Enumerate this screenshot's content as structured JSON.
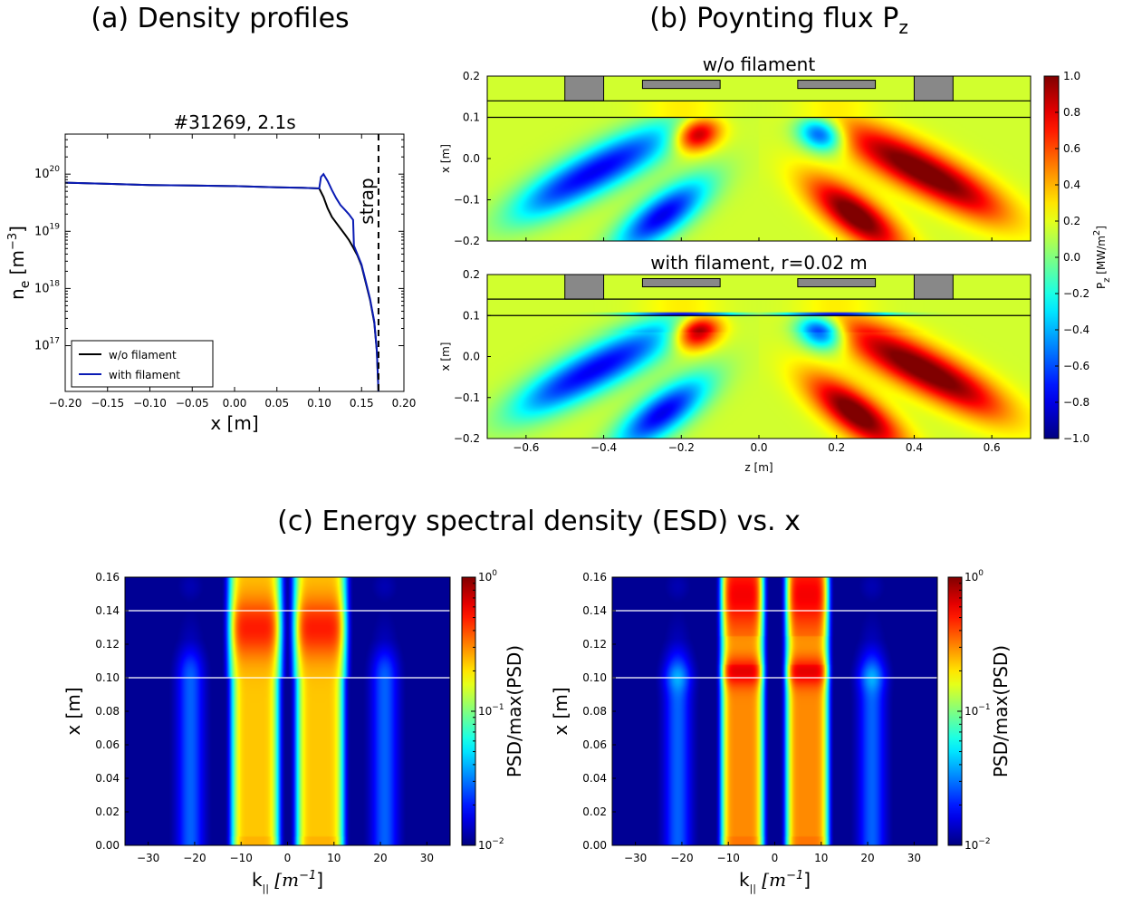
{
  "section_titles": {
    "a": "(a) Density profiles",
    "b_main": "(b) Poynting flux P",
    "b_sub": "z",
    "c": "(c) Energy spectral density (ESD) vs. x"
  },
  "colors": {
    "jet": [
      "#00007f",
      "#0000ff",
      "#007fff",
      "#00ffff",
      "#7fff7f",
      "#ffff00",
      "#ff7f00",
      "#ff0000",
      "#7f0000"
    ],
    "bg_field": "#6fd36c",
    "deep_blue": "#00008a",
    "block": "#888888",
    "w_o_line": "#000000",
    "with_line": "#0a1bb4"
  },
  "chart_data": [
    {
      "id": "density",
      "type": "line",
      "title": "#31269, 2.1s",
      "xlabel": "x [m]",
      "ylabel_main": "n",
      "ylabel_sub": "e",
      "ylabel_unit": " [m",
      "ylabel_sup": "−3",
      "ylabel_end": "]",
      "xlim": [
        -0.2,
        0.2
      ],
      "ylim_log10": [
        16.2,
        20.7
      ],
      "yscale": "log",
      "x_ticks": [
        -0.2,
        -0.15,
        -0.1,
        -0.05,
        0.0,
        0.05,
        0.1,
        0.15,
        0.2
      ],
      "x_tick_labels": [
        "−0.20",
        "−0.15",
        "−0.10",
        "−0.05",
        "0.00",
        "0.05",
        "0.10",
        "0.15",
        "0.20"
      ],
      "y_ticks_log10": [
        17,
        18,
        19,
        20
      ],
      "y_tick_base": "10",
      "y_tick_exps": [
        "17",
        "18",
        "19",
        "20"
      ],
      "strap_x": 0.17,
      "strap_label": "strap",
      "legend_position": "bottom-left",
      "series": [
        {
          "name": "w/o filament",
          "x": [
            -0.2,
            -0.15,
            -0.1,
            -0.05,
            0.0,
            0.05,
            0.08,
            0.1,
            0.105,
            0.11,
            0.115,
            0.12,
            0.125,
            0.13,
            0.135,
            0.14,
            0.145,
            0.15,
            0.155,
            0.16,
            0.165,
            0.168,
            0.17
          ],
          "log10_y": [
            19.85,
            19.83,
            19.81,
            19.8,
            19.79,
            19.77,
            19.76,
            19.75,
            19.6,
            19.4,
            19.25,
            19.15,
            19.05,
            18.95,
            18.85,
            18.72,
            18.58,
            18.4,
            18.1,
            17.8,
            17.4,
            16.9,
            16.2
          ]
        },
        {
          "name": "with filament",
          "x": [
            -0.2,
            -0.15,
            -0.1,
            -0.05,
            0.0,
            0.05,
            0.08,
            0.1,
            0.102,
            0.105,
            0.11,
            0.115,
            0.12,
            0.125,
            0.13,
            0.135,
            0.14,
            0.141,
            0.145,
            0.15,
            0.155,
            0.16,
            0.165,
            0.168,
            0.17
          ],
          "log10_y": [
            19.85,
            19.83,
            19.81,
            19.8,
            19.79,
            19.77,
            19.76,
            19.75,
            19.95,
            20.0,
            19.88,
            19.72,
            19.58,
            19.46,
            19.38,
            19.3,
            19.2,
            18.75,
            18.6,
            18.42,
            18.12,
            17.82,
            17.42,
            16.92,
            16.2
          ]
        }
      ]
    },
    {
      "id": "poynting",
      "type": "heatmap",
      "panels": [
        {
          "title": "w/o filament",
          "filament": false
        },
        {
          "title": "with filament, r=0.02 m",
          "filament": true
        }
      ],
      "xlabel": "z [m]",
      "ylabel": "x [m]",
      "xlim": [
        -0.7,
        0.7
      ],
      "ylim": [
        -0.2,
        0.2
      ],
      "x_ticks": [
        -0.6,
        -0.4,
        -0.2,
        0.0,
        0.2,
        0.4,
        0.6
      ],
      "x_tick_labels": [
        "−0.6",
        "−0.4",
        "−0.2",
        "0.0",
        "0.2",
        "0.4",
        "0.6"
      ],
      "y_ticks": [
        -0.2,
        -0.1,
        0.0,
        0.1,
        0.2
      ],
      "y_tick_labels": [
        "−0.2",
        "−0.1",
        "0.0",
        "0.1",
        "0.2"
      ],
      "lines_x": [
        0.1,
        0.14
      ],
      "limiters_z": [
        [
          -0.5,
          -0.4
        ],
        [
          0.4,
          0.5
        ]
      ],
      "limiters_x": [
        0.14,
        0.2
      ],
      "straps_z": [
        [
          -0.3,
          -0.1
        ],
        [
          0.1,
          0.3
        ]
      ],
      "straps_x": [
        0.17,
        0.19
      ],
      "colorbar": {
        "range": [
          -1.0,
          1.0
        ],
        "ticks": [
          -1.0,
          -0.8,
          -0.6,
          -0.4,
          -0.2,
          0.0,
          0.2,
          0.4,
          0.6,
          0.8,
          1.0
        ],
        "tick_labels": [
          "−1.0",
          "−0.8",
          "−0.6",
          "−0.4",
          "−0.2",
          "0.0",
          "0.2",
          "0.4",
          "0.6",
          "0.8",
          "1.0"
        ],
        "label_main": "P",
        "label_sub": "z",
        "label_unit": " [MW/m",
        "label_sup": "2",
        "label_end": "]"
      }
    },
    {
      "id": "esd",
      "type": "heatmap",
      "panels": [
        {
          "variant": "w/o filament",
          "bands": [
            {
              "k": -21,
              "w": 3.0,
              "low": 0.22,
              "high": 0.25
            },
            {
              "k": -7,
              "w": 4.5,
              "low": 0.68,
              "high": 0.85
            },
            {
              "k": 7,
              "w": 4.5,
              "low": 0.68,
              "high": 0.85
            },
            {
              "k": 21,
              "w": 3.0,
              "low": 0.22,
              "high": 0.25
            }
          ]
        },
        {
          "variant": "with filament",
          "bands": [
            {
              "k": -21,
              "w": 3.0,
              "low": 0.22,
              "high": 0.28
            },
            {
              "k": -7,
              "w": 4.0,
              "low": 0.74,
              "high": 0.9
            },
            {
              "k": 7,
              "w": 4.0,
              "low": 0.74,
              "high": 0.9
            },
            {
              "k": 21,
              "w": 3.0,
              "low": 0.22,
              "high": 0.28
            }
          ]
        }
      ],
      "xlabel_main": "k",
      "xlabel_sub": "||",
      "xlabel_unit": " [m",
      "xlabel_sup": "−1",
      "xlabel_end": "]",
      "ylabel": "x [m]",
      "xlim": [
        -35,
        35
      ],
      "ylim": [
        0.0,
        0.16
      ],
      "x_ticks": [
        -30,
        -20,
        -10,
        0,
        10,
        20,
        30
      ],
      "x_tick_labels": [
        "−30",
        "−20",
        "−10",
        "0",
        "10",
        "20",
        "30"
      ],
      "y_ticks": [
        0.0,
        0.02,
        0.04,
        0.06,
        0.08,
        0.1,
        0.12,
        0.14,
        0.16
      ],
      "y_tick_labels": [
        "0.00",
        "0.02",
        "0.04",
        "0.06",
        "0.08",
        "0.10",
        "0.12",
        "0.14",
        "0.16"
      ],
      "lines_x": [
        0.1,
        0.14
      ],
      "colorbar": {
        "scale": "log",
        "range_log10": [
          -2,
          0
        ],
        "tick_base": "10",
        "tick_exps": [
          "−2",
          "−1",
          "0"
        ],
        "tick_log10": [
          -2,
          -1,
          0
        ],
        "label": "PSD/max(PSD)"
      }
    }
  ]
}
